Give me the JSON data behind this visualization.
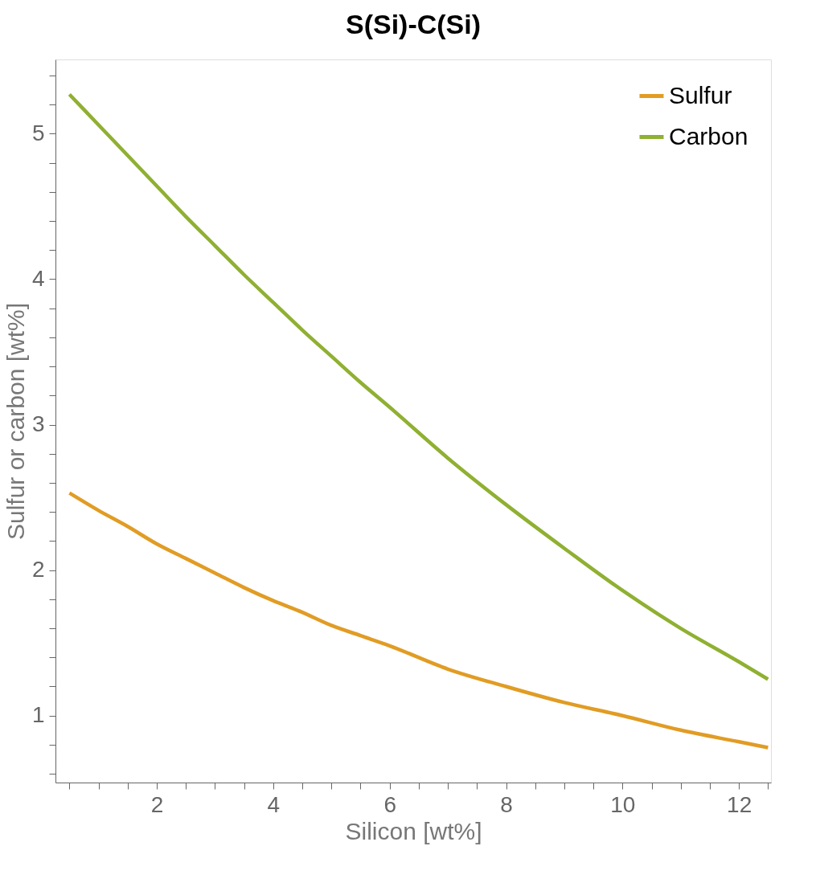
{
  "chart_data": {
    "type": "line",
    "title": "S(Si)-C(Si)",
    "xlabel": "Silicon [wt%]",
    "ylabel": "Sulfur or carbon [wt%]",
    "x": [
      0.5,
      1,
      1.5,
      2,
      2.5,
      3,
      3.5,
      4,
      4.5,
      5,
      5.5,
      6,
      7,
      8,
      9,
      10,
      11,
      12,
      12.5
    ],
    "series": [
      {
        "name": "Sulfur",
        "color": "#e19c24",
        "values": [
          2.53,
          2.41,
          2.3,
          2.18,
          2.08,
          1.98,
          1.88,
          1.79,
          1.71,
          1.62,
          1.55,
          1.48,
          1.32,
          1.2,
          1.09,
          1.0,
          0.9,
          0.82,
          0.78
        ]
      },
      {
        "name": "Carbon",
        "color": "#8fb032",
        "values": [
          5.27,
          5.06,
          4.85,
          4.64,
          4.43,
          4.23,
          4.03,
          3.84,
          3.65,
          3.47,
          3.29,
          3.12,
          2.77,
          2.45,
          2.15,
          1.86,
          1.6,
          1.37,
          1.25
        ]
      }
    ],
    "xlim": [
      0.26,
      12.55
    ],
    "ylim": [
      0.54,
      5.51
    ],
    "xticks": [
      {
        "value": 0.5,
        "label": null
      },
      {
        "value": 1,
        "label": null
      },
      {
        "value": 1.5,
        "label": null
      },
      2,
      {
        "value": 2.5,
        "label": null
      },
      {
        "value": 3,
        "label": null
      },
      {
        "value": 3.5,
        "label": null
      },
      4,
      {
        "value": 4.5,
        "label": null
      },
      {
        "value": 5,
        "label": null
      },
      {
        "value": 5.5,
        "label": null
      },
      6,
      {
        "value": 6.5,
        "label": null
      },
      {
        "value": 7,
        "label": null
      },
      {
        "value": 7.5,
        "label": null
      },
      8,
      {
        "value": 8.5,
        "label": null
      },
      {
        "value": 9,
        "label": null
      },
      {
        "value": 9.5,
        "label": null
      },
      10,
      {
        "value": 10.5,
        "label": null
      },
      {
        "value": 11,
        "label": null
      },
      {
        "value": 11.5,
        "label": null
      },
      12,
      {
        "value": 12.5,
        "label": null
      }
    ],
    "yticks": [
      {
        "value": 0.6,
        "label": null
      },
      {
        "value": 0.8,
        "label": null
      },
      1,
      {
        "value": 1.2,
        "label": null
      },
      {
        "value": 1.4,
        "label": null
      },
      {
        "value": 1.6,
        "label": null
      },
      {
        "value": 1.8,
        "label": null
      },
      2,
      {
        "value": 2.2,
        "label": null
      },
      {
        "value": 2.4,
        "label": null
      },
      {
        "value": 2.6,
        "label": null
      },
      {
        "value": 2.8,
        "label": null
      },
      3,
      {
        "value": 3.2,
        "label": null
      },
      {
        "value": 3.4,
        "label": null
      },
      {
        "value": 3.6,
        "label": null
      },
      {
        "value": 3.8,
        "label": null
      },
      4,
      {
        "value": 4.2,
        "label": null
      },
      {
        "value": 4.4,
        "label": null
      },
      {
        "value": 4.6,
        "label": null
      },
      {
        "value": 4.8,
        "label": null
      },
      5,
      {
        "value": 5.2,
        "label": null
      },
      {
        "value": 5.4,
        "label": null
      }
    ],
    "legend": "top right",
    "grid": false,
    "line_style": "solid",
    "marker": "none"
  }
}
